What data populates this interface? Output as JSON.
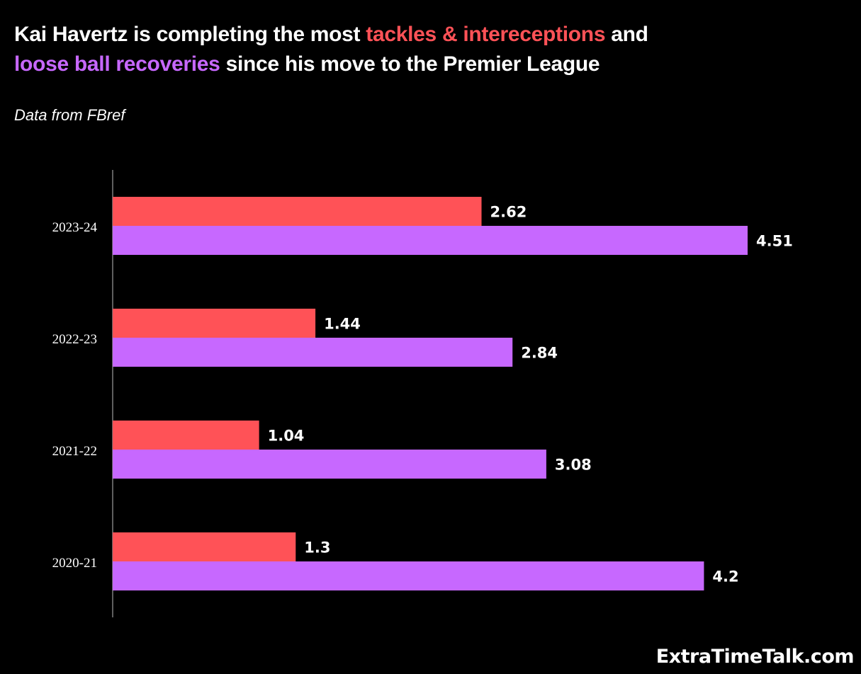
{
  "header": {
    "title_parts": [
      {
        "text": "Kai Havertz is completing the most ",
        "style": "plain"
      },
      {
        "text": "tackles & intereceptions",
        "style": "series1"
      },
      {
        "text": " and ",
        "style": "plain"
      },
      {
        "text": "loose ball recoveries",
        "style": "series2"
      },
      {
        "text": " since his move to the Premier League",
        "style": "plain"
      }
    ],
    "subtitle": "Data from FBref"
  },
  "footer": {
    "brand": "ExtraTimeTalk.com"
  },
  "chart_data": {
    "type": "bar",
    "orientation": "horizontal",
    "title": "Kai Havertz is completing the most tackles & intereceptions and loose ball recoveries since his move to the Premier League",
    "subtitle": "Data from FBref",
    "xlabel": "",
    "ylabel": "",
    "categories": [
      "2023-24",
      "2022-23",
      "2021-22",
      "2020-21"
    ],
    "series": [
      {
        "name": "tackles & intereceptions",
        "color": "#ff5257",
        "values": [
          2.62,
          1.44,
          1.04,
          1.3
        ]
      },
      {
        "name": "loose ball recoveries",
        "color": "#c768ff",
        "values": [
          4.51,
          2.84,
          3.08,
          4.2
        ]
      }
    ],
    "xlim": [
      0,
      4.51
    ],
    "grid": false,
    "legend": "none (colors encoded in title)",
    "data_labels": true
  }
}
